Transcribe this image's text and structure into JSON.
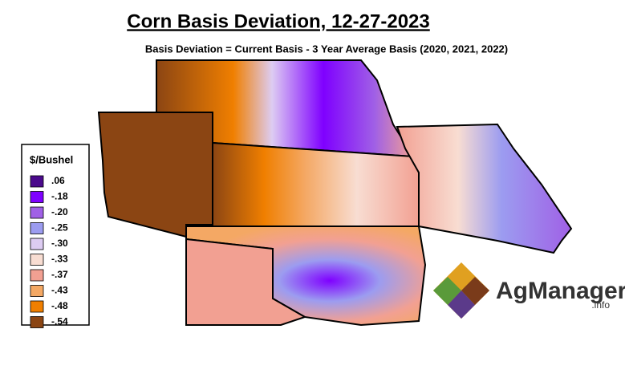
{
  "header": {
    "title": "Corn Basis Deviation, 12-27-2023",
    "subtitle": "Basis Deviation = Current Basis - 3 Year Average Basis (2020, 2021, 2022)"
  },
  "legend": {
    "title": "$/Bushel",
    "items": [
      {
        "label": ".06",
        "color": "#4b0a8c"
      },
      {
        "label": "-.18",
        "color": "#7f00ff"
      },
      {
        "label": "-.20",
        "color": "#a060e6"
      },
      {
        "label": "-.25",
        "color": "#9c9cf0"
      },
      {
        "label": "-.30",
        "color": "#ddccf2"
      },
      {
        "label": "-.33",
        "color": "#f8ddd2"
      },
      {
        "label": "-.37",
        "color": "#f2a092"
      },
      {
        "label": "-.43",
        "color": "#f4a864"
      },
      {
        "label": "-.48",
        "color": "#f07f00"
      },
      {
        "label": "-.54",
        "color": "#8b4513"
      }
    ]
  },
  "logo": {
    "name": "AgManager",
    "suffix": ".info"
  }
}
